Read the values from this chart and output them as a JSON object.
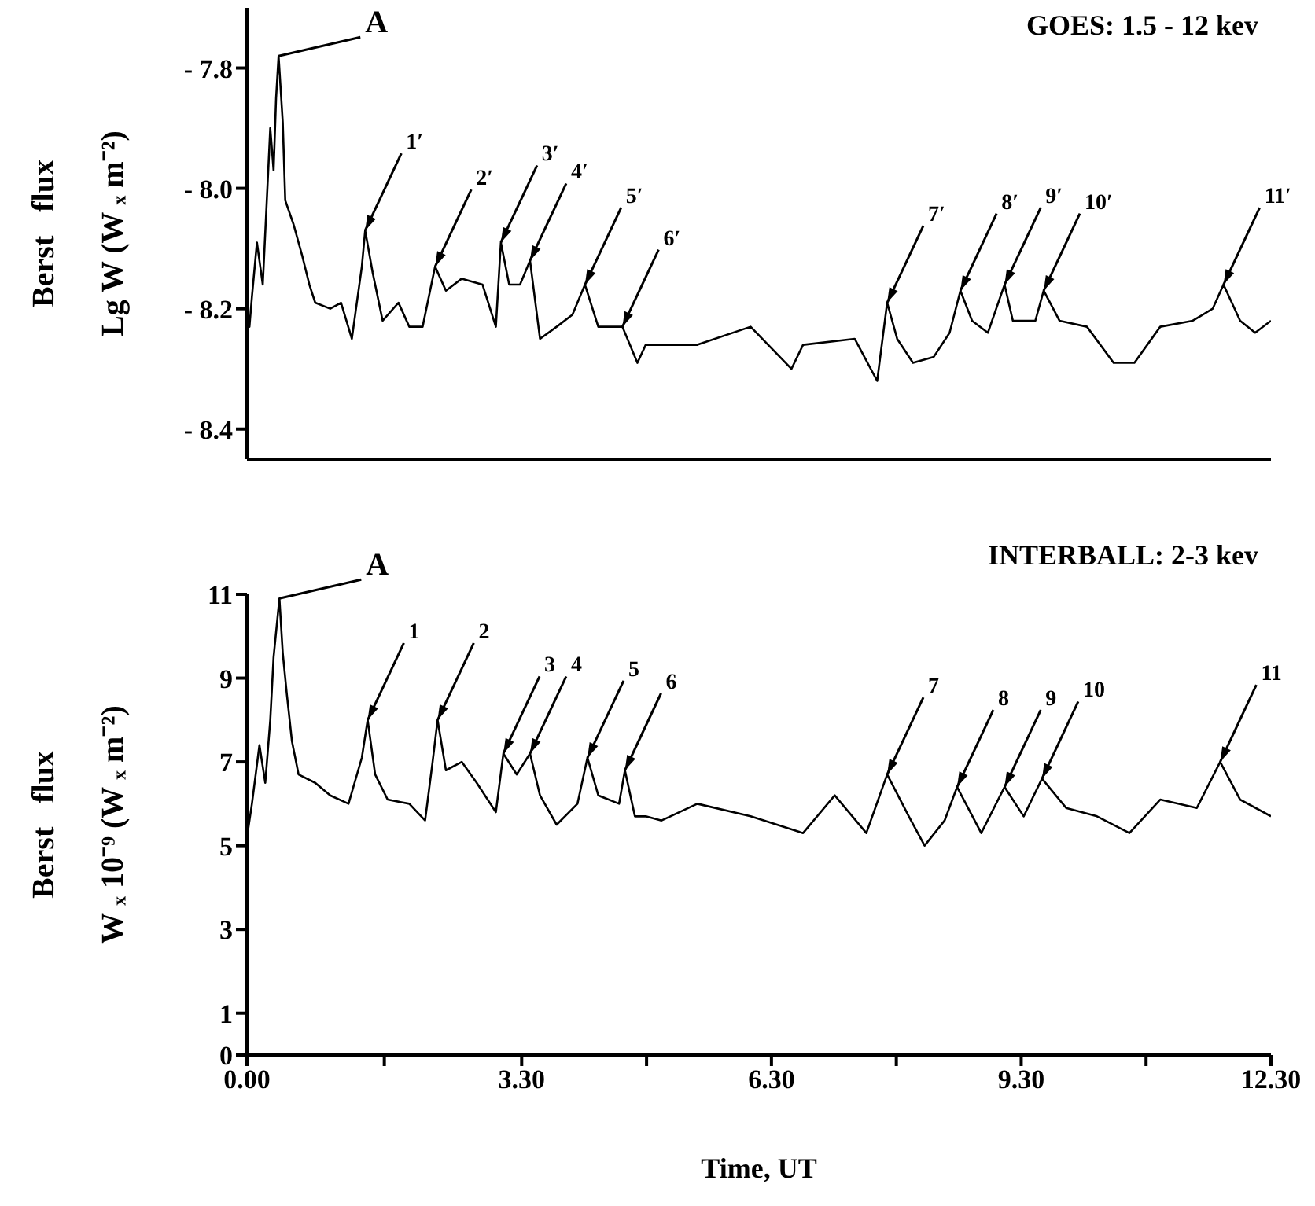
{
  "chart_data": [
    {
      "type": "line",
      "title": "GOES: 1.5 - 12 kev",
      "ylabel": "Berst   flux\nLg W (W ₓ m⁻²)",
      "color": "#000000",
      "xlim": [
        0,
        12.3
      ],
      "ylim": [
        -8.45,
        -7.7
      ],
      "yticks": [
        {
          "value": -7.8,
          "label": "- 7.8"
        },
        {
          "value": -8.0,
          "label": "- 8.0"
        },
        {
          "value": -8.2,
          "label": "- 8.2"
        },
        {
          "value": -8.4,
          "label": "- 8.4"
        }
      ],
      "tick_labels": "y",
      "x": [
        0,
        0.03,
        0.06,
        0.12,
        0.19,
        0.28,
        0.32,
        0.35,
        0.38,
        0.43,
        0.46,
        0.56,
        0.66,
        0.75,
        0.82,
        1.0,
        1.13,
        1.26,
        1.38,
        1.42,
        1.51,
        1.63,
        1.82,
        1.95,
        2.11,
        2.26,
        2.39,
        2.58,
        2.83,
        2.99,
        3.05,
        3.15,
        3.28,
        3.4,
        3.52,
        3.72,
        3.91,
        4.06,
        4.22,
        4.51,
        4.69,
        4.79,
        5.41,
        6.05,
        6.54,
        6.68,
        7.3,
        7.57,
        7.69,
        7.81,
        8.0,
        8.25,
        8.44,
        8.57,
        8.71,
        8.9,
        9.0,
        9.1,
        9.2,
        9.47,
        9.57,
        9.76,
        10.09,
        10.41,
        10.66,
        10.97,
        11.36,
        11.6,
        11.73,
        11.93,
        12.11,
        12.3
      ],
      "values": [
        -8.21,
        -8.23,
        -8.18,
        -8.09,
        -8.16,
        -7.9,
        -7.97,
        -7.85,
        -7.78,
        -7.89,
        -8.02,
        -8.06,
        -8.11,
        -8.16,
        -8.19,
        -8.2,
        -8.19,
        -8.25,
        -8.13,
        -8.07,
        -8.14,
        -8.22,
        -8.19,
        -8.23,
        -8.23,
        -8.13,
        -8.17,
        -8.15,
        -8.16,
        -8.23,
        -8.09,
        -8.16,
        -8.16,
        -8.12,
        -8.25,
        -8.23,
        -8.21,
        -8.16,
        -8.23,
        -8.23,
        -8.29,
        -8.26,
        -8.26,
        -8.23,
        -8.3,
        -8.26,
        -8.25,
        -8.32,
        -8.19,
        -8.25,
        -8.29,
        -8.28,
        -8.24,
        -8.17,
        -8.22,
        -8.24,
        -8.2,
        -8.16,
        -8.22,
        -8.22,
        -8.17,
        -8.22,
        -8.23,
        -8.29,
        -8.29,
        -8.23,
        -8.22,
        -8.2,
        -8.16,
        -8.22,
        -8.24,
        -8.22
      ],
      "annotations": [
        {
          "text": "A",
          "x": 0.38,
          "y": -7.78
        },
        {
          "text": "1′",
          "x": 1.42,
          "y": -8.07
        },
        {
          "text": "2′",
          "x": 2.26,
          "y": -8.13
        },
        {
          "text": "3′",
          "x": 3.05,
          "y": -8.09
        },
        {
          "text": "4′",
          "x": 3.4,
          "y": -8.12
        },
        {
          "text": "5′",
          "x": 4.06,
          "y": -8.16
        },
        {
          "text": "6′",
          "x": 4.51,
          "y": -8.23
        },
        {
          "text": "7′",
          "x": 7.69,
          "y": -8.19
        },
        {
          "text": "8′",
          "x": 8.57,
          "y": -8.17
        },
        {
          "text": "9′",
          "x": 9.1,
          "y": -8.16
        },
        {
          "text": "10′",
          "x": 9.57,
          "y": -8.17
        },
        {
          "text": "11′",
          "x": 11.73,
          "y": -8.16
        }
      ]
    },
    {
      "type": "line",
      "title": "INTERBALL: 2-3 kev",
      "ylabel": "Berst   flux\nW ₓ 10⁻⁹ (W ₓ m⁻²)",
      "xlabel": "Time, UT",
      "color": "#000000",
      "xlim": [
        0,
        12.3
      ],
      "ylim": [
        0,
        11
      ],
      "yticks": [
        0,
        1,
        3,
        5,
        7,
        9,
        11
      ],
      "xticks": [
        {
          "value": 0,
          "label": "0.00"
        },
        {
          "value": 1.65,
          "label": null
        },
        {
          "value": 3.3,
          "label": "3.30"
        },
        {
          "value": 4.8,
          "label": null
        },
        {
          "value": 6.3,
          "label": "6.30"
        },
        {
          "value": 7.8,
          "label": null
        },
        {
          "value": 9.3,
          "label": "9.30"
        },
        {
          "value": 10.8,
          "label": null
        },
        {
          "value": 12.3,
          "label": "12.30"
        }
      ],
      "x": [
        0,
        0.06,
        0.15,
        0.22,
        0.28,
        0.32,
        0.39,
        0.43,
        0.48,
        0.54,
        0.62,
        0.82,
        1.0,
        1.22,
        1.38,
        1.45,
        1.54,
        1.69,
        1.95,
        2.14,
        2.23,
        2.29,
        2.39,
        2.58,
        2.76,
        2.99,
        3.08,
        3.24,
        3.4,
        3.52,
        3.72,
        3.97,
        4.09,
        4.22,
        4.47,
        4.54,
        4.66,
        4.79,
        4.98,
        5.41,
        6.05,
        6.68,
        7.06,
        7.44,
        7.69,
        7.95,
        8.14,
        8.38,
        8.53,
        8.82,
        9.1,
        9.33,
        9.55,
        9.84,
        10.21,
        10.6,
        10.97,
        11.41,
        11.69,
        11.93,
        12.3
      ],
      "values": [
        5.2,
        6.0,
        7.4,
        6.5,
        8.0,
        9.5,
        10.9,
        9.6,
        8.6,
        7.5,
        6.7,
        6.5,
        6.2,
        6.0,
        7.1,
        8.0,
        6.7,
        6.1,
        6.0,
        5.6,
        7.0,
        8.0,
        6.8,
        7.0,
        6.5,
        5.8,
        7.2,
        6.7,
        7.2,
        6.2,
        5.5,
        6.0,
        7.1,
        6.2,
        6.0,
        6.8,
        5.7,
        5.7,
        5.6,
        6.0,
        5.7,
        5.3,
        6.2,
        5.3,
        6.7,
        5.7,
        5.0,
        5.6,
        6.4,
        5.3,
        6.4,
        5.7,
        6.6,
        5.9,
        5.7,
        5.3,
        6.1,
        5.9,
        7.0,
        6.1,
        5.7
      ],
      "annotations": [
        {
          "text": "A",
          "x": 0.39,
          "y": 10.9
        },
        {
          "text": "1",
          "x": 1.45,
          "y": 8.0
        },
        {
          "text": "2",
          "x": 2.29,
          "y": 8.0
        },
        {
          "text": "3",
          "x": 3.08,
          "y": 7.2
        },
        {
          "text": "4",
          "x": 3.4,
          "y": 7.2
        },
        {
          "text": "5",
          "x": 4.09,
          "y": 7.1
        },
        {
          "text": "6",
          "x": 4.54,
          "y": 6.8
        },
        {
          "text": "7",
          "x": 7.69,
          "y": 6.7
        },
        {
          "text": "8",
          "x": 8.53,
          "y": 6.4
        },
        {
          "text": "9",
          "x": 9.1,
          "y": 6.4
        },
        {
          "text": "10",
          "x": 9.55,
          "y": 6.6
        },
        {
          "text": "11",
          "x": 11.69,
          "y": 7.0
        }
      ]
    }
  ]
}
